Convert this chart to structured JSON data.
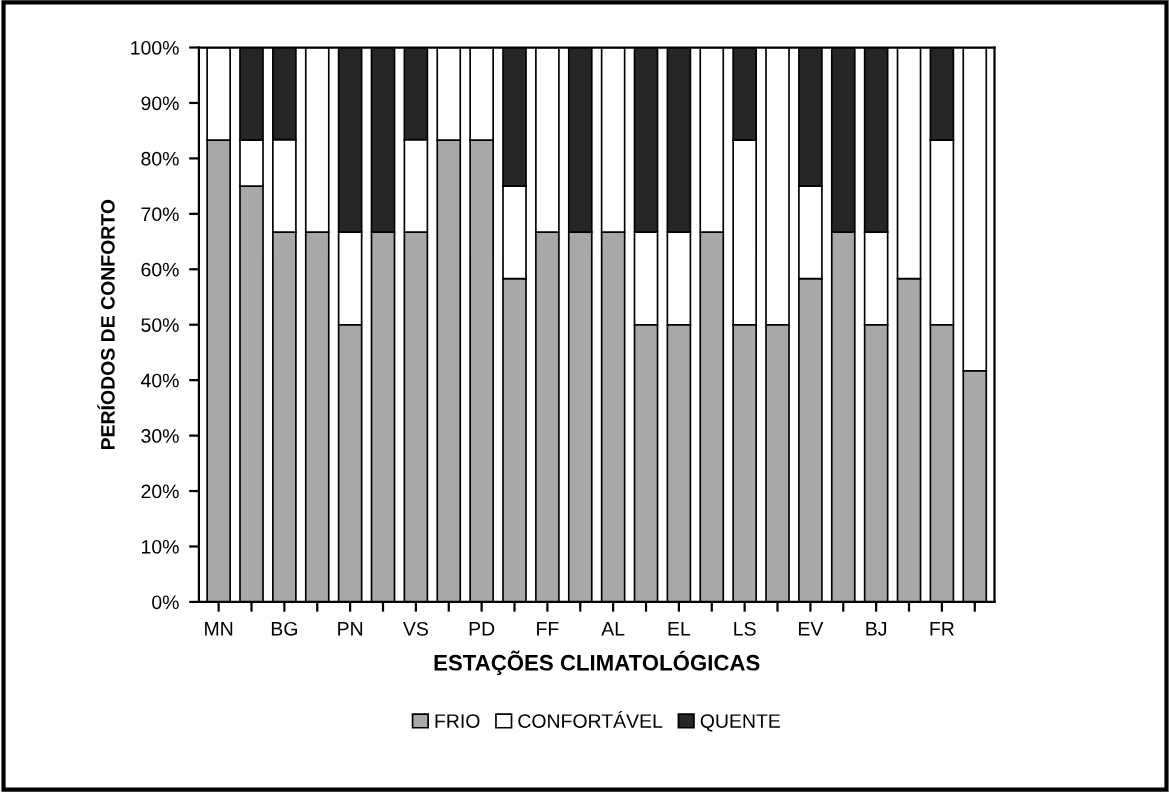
{
  "chart_data": {
    "type": "bar",
    "stacked": true,
    "xlabel": "ESTAÇÕES CLIMATOLÓGICAS",
    "ylabel": "PERÍODOS DE CONFORTO",
    "categories": [
      "MN",
      null,
      "BG",
      null,
      "PN",
      null,
      "VS",
      null,
      "PD",
      null,
      "FF",
      null,
      "AL",
      null,
      "EL",
      null,
      "LS",
      null,
      "EV",
      null,
      "BJ",
      null,
      "FR",
      null
    ],
    "series": [
      {
        "name": "FRIO",
        "color": "#a8a8a8",
        "values": [
          83.3,
          75,
          66.7,
          66.7,
          50,
          66.7,
          66.7,
          83.3,
          83.3,
          58.3,
          66.7,
          66.7,
          66.7,
          50,
          50,
          66.7,
          50,
          50,
          58.3,
          66.7,
          50,
          58.3,
          50,
          41.7
        ]
      },
      {
        "name": "CONFORTÁVEL",
        "color": "#ffffff",
        "values": [
          16.7,
          8.3,
          16.7,
          33.3,
          16.7,
          0,
          16.7,
          16.7,
          16.7,
          16.7,
          33.3,
          0,
          33.3,
          16.7,
          16.7,
          33.3,
          33.3,
          50,
          16.7,
          0,
          16.7,
          41.7,
          33.3,
          58.3
        ]
      },
      {
        "name": "QUENTE",
        "color": "#262626",
        "values": [
          0,
          16.7,
          16.7,
          0,
          33.3,
          33.3,
          16.7,
          0,
          0,
          25,
          0,
          33.3,
          0,
          33.3,
          33.3,
          0,
          16.7,
          0,
          25,
          33.3,
          33.3,
          0,
          16.7,
          0
        ]
      }
    ],
    "ylim": [
      0,
      100
    ],
    "yticks": [
      {
        "value": 0,
        "label": "0%"
      },
      {
        "value": 10,
        "label": "10%"
      },
      {
        "value": 20,
        "label": "20%"
      },
      {
        "value": 30,
        "label": "30%"
      },
      {
        "value": 40,
        "label": "40%"
      },
      {
        "value": 50,
        "label": "50%"
      },
      {
        "value": 60,
        "label": "60%"
      },
      {
        "value": 70,
        "label": "70%"
      },
      {
        "value": 80,
        "label": "80%"
      },
      {
        "value": 90,
        "label": "90%"
      },
      {
        "value": 100,
        "label": "100%"
      }
    ],
    "legend": "bottom",
    "grid": false
  }
}
